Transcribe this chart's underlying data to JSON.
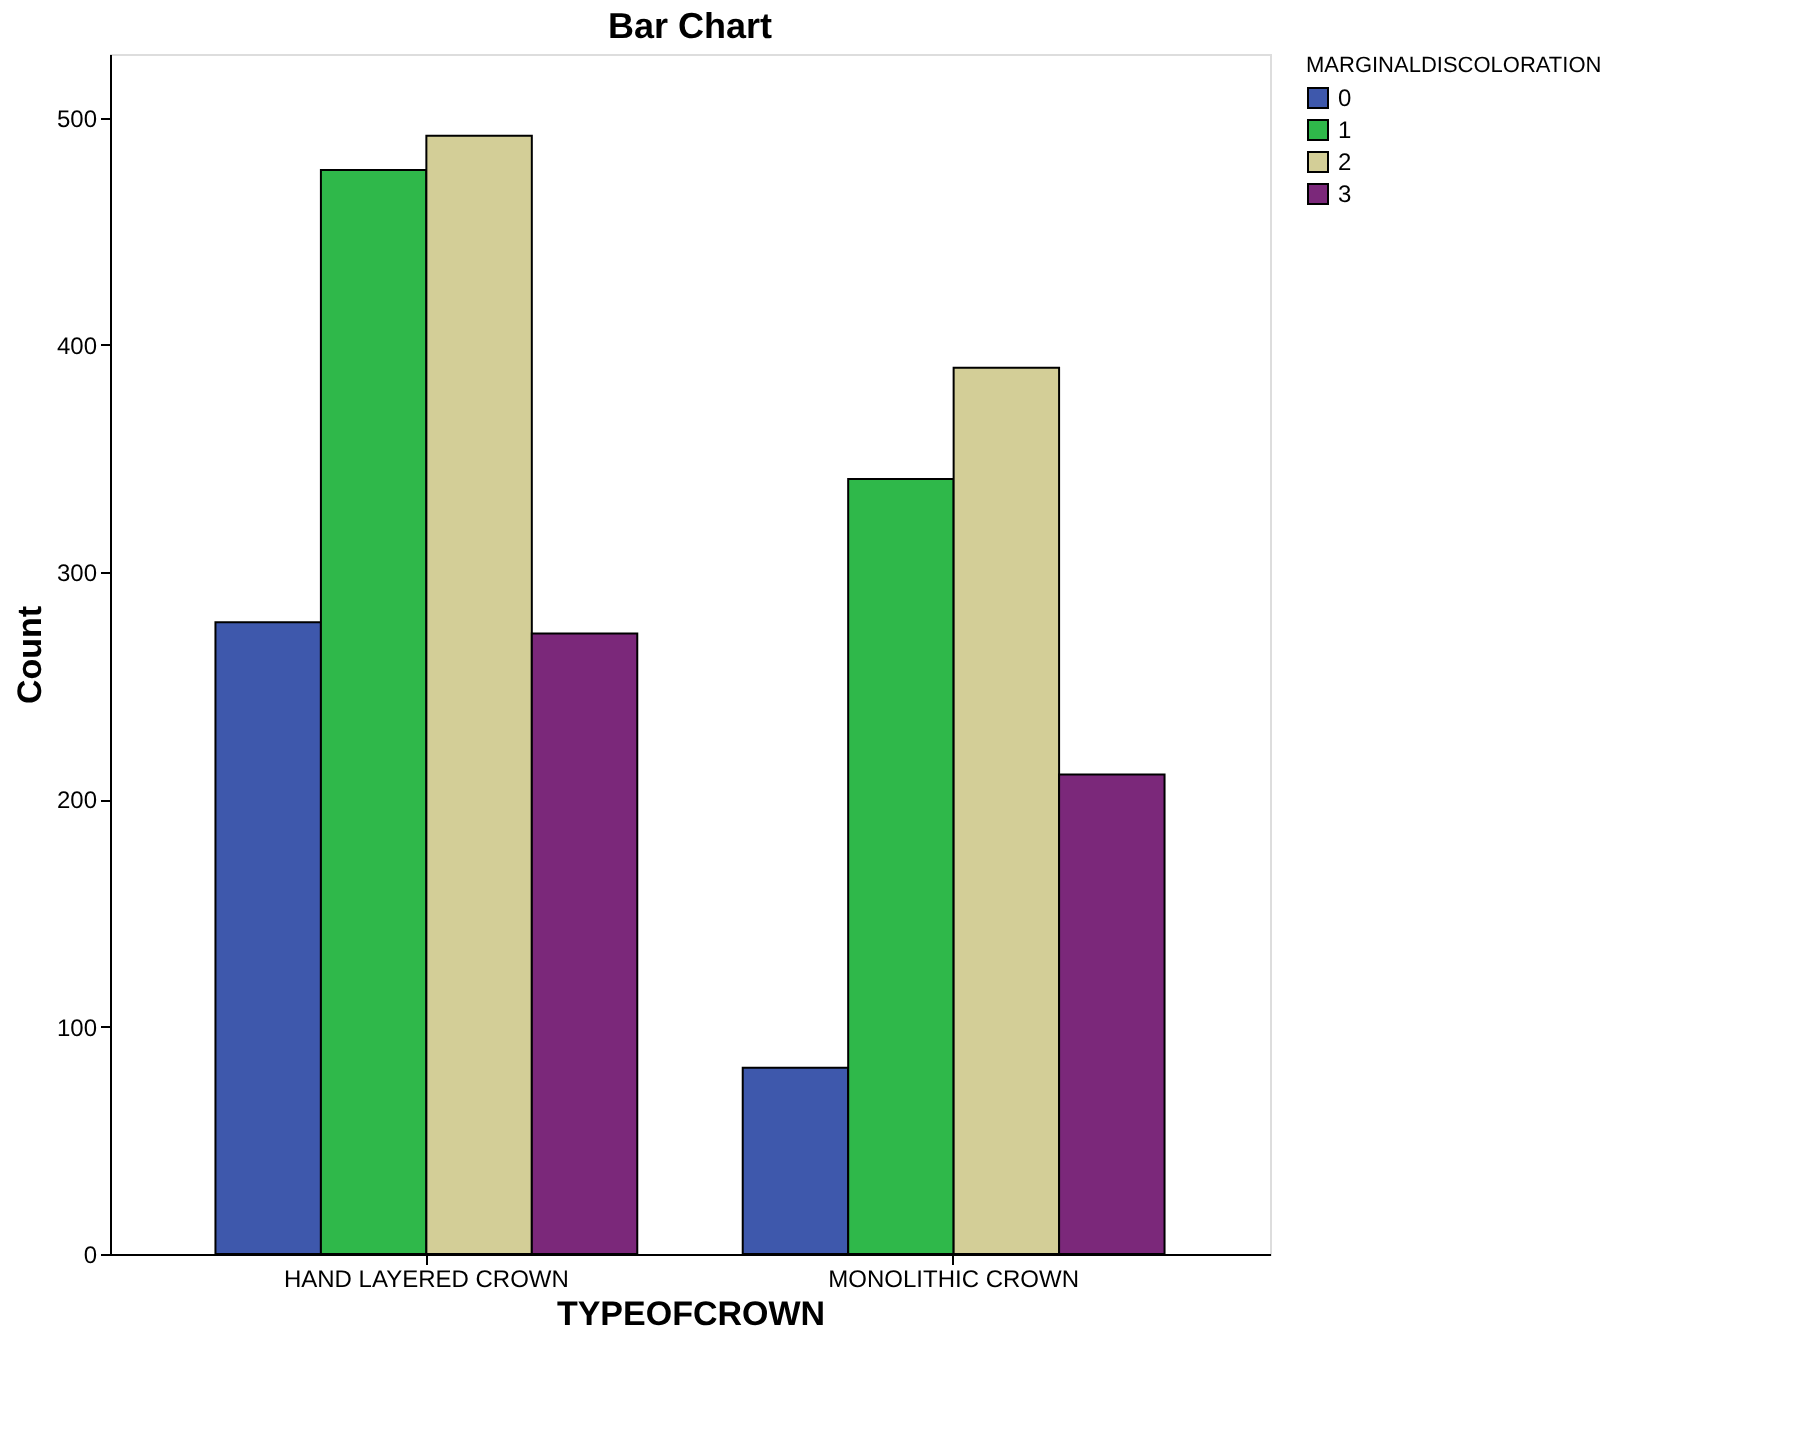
{
  "chart_data": {
    "type": "bar",
    "title": "Bar Chart",
    "xlabel": "TYPEOFCROWN",
    "ylabel": "Count",
    "legend_title": "MARGINALDISCOLORATION",
    "categories": [
      "HAND LAYERED CROWN",
      "MONOLITHIC CROWN"
    ],
    "series": [
      {
        "name": "0",
        "color": "#3e58ac",
        "values": [
          278,
          82
        ]
      },
      {
        "name": "1",
        "color": "#2fb84a",
        "values": [
          477,
          341
        ]
      },
      {
        "name": "2",
        "color": "#d3ce97",
        "values": [
          492,
          390
        ]
      },
      {
        "name": "3",
        "color": "#7b287a",
        "values": [
          273,
          211
        ]
      }
    ],
    "ylim": [
      0,
      528
    ],
    "yticks": [
      0,
      100,
      200,
      300,
      400,
      500
    ],
    "grid": false,
    "legend": "top right"
  }
}
